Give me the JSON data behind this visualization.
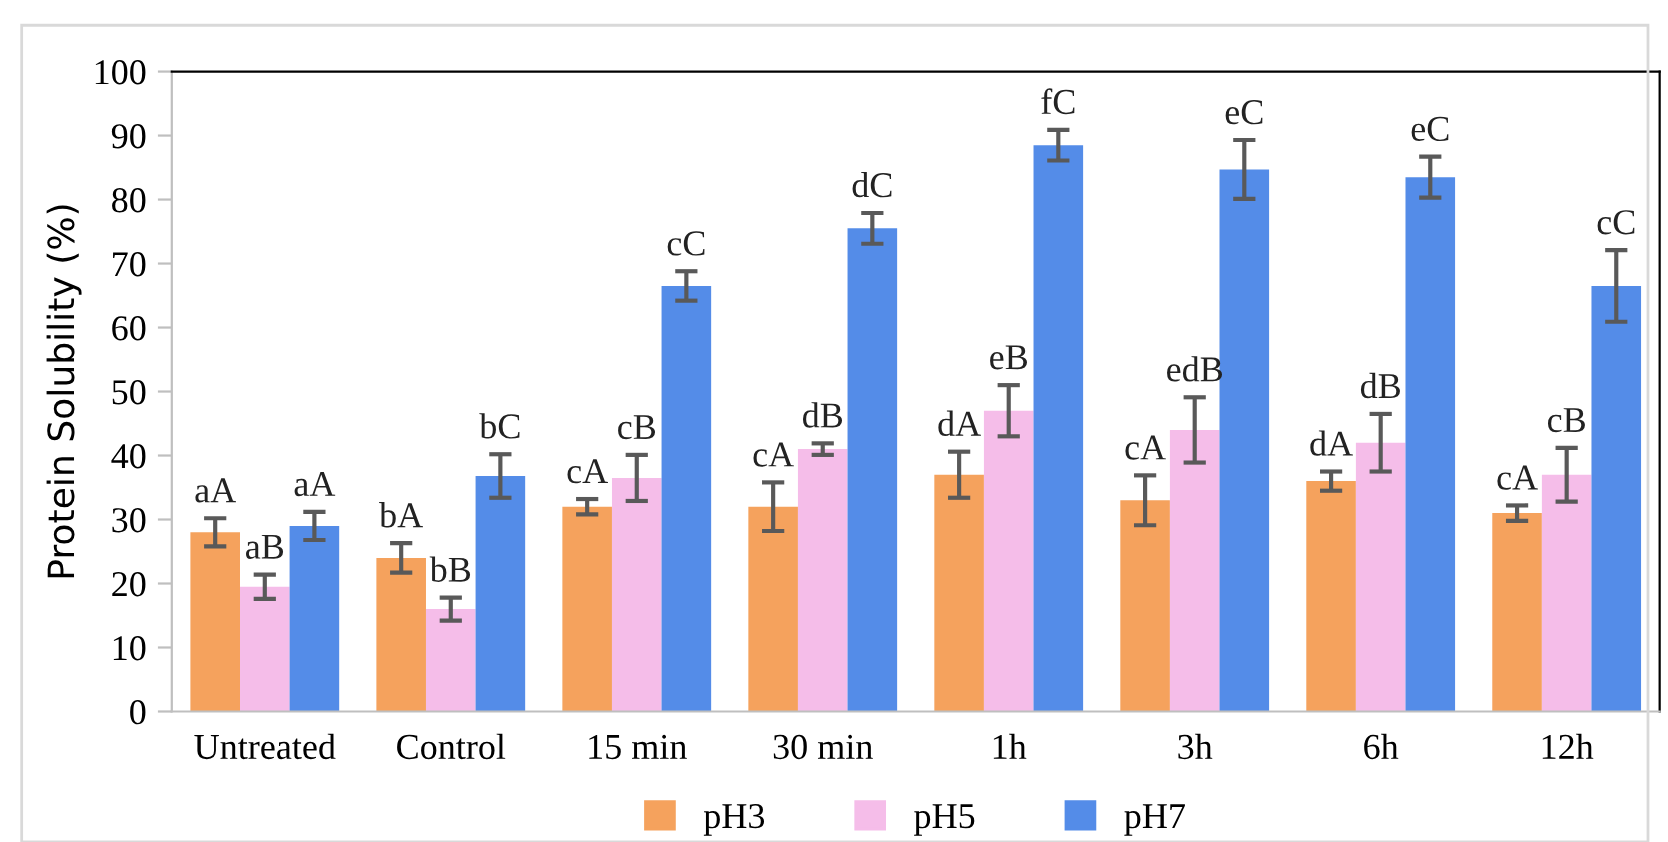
{
  "chart_data": {
    "type": "bar",
    "ylabel": "Protein Solubility (%)",
    "categories": [
      "Untreated",
      "Control",
      "15 min",
      "30 min",
      "1h",
      "3h",
      "6h",
      "12h"
    ],
    "series": [
      {
        "name": "pH3",
        "color": "#f5a25d",
        "values": [
          28,
          24,
          32,
          32,
          37,
          33,
          36,
          31
        ],
        "errors": [
          2.2,
          2.3,
          1.2,
          3.8,
          3.6,
          3.9,
          1.5,
          1.2
        ],
        "value_labels": [
          "aA",
          "bA",
          "cA",
          "cA",
          "dA",
          "cA",
          "dA",
          "cA"
        ]
      },
      {
        "name": "pH5",
        "color": "#f5bde9",
        "values": [
          19.5,
          16,
          36.5,
          41,
          47,
          44,
          42,
          37
        ],
        "errors": [
          1.9,
          1.8,
          3.6,
          0.9,
          4.0,
          5.1,
          4.5,
          4.2
        ],
        "value_labels": [
          "aB",
          "bB",
          "cB",
          "dB",
          "eB",
          "edB",
          "dB",
          "cB"
        ]
      },
      {
        "name": "pH7",
        "color": "#548ce8",
        "values": [
          29,
          36.8,
          66.5,
          75.5,
          88.5,
          84.7,
          83.5,
          66.5
        ],
        "errors": [
          2.2,
          3.4,
          2.3,
          2.4,
          2.4,
          4.6,
          3.2,
          5.6
        ],
        "value_labels": [
          "aA",
          "bC",
          "cC",
          "dC",
          "fC",
          "eC",
          "eC",
          "cC"
        ]
      }
    ],
    "ylim": [
      0,
      100
    ],
    "yticks": [
      0,
      10,
      20,
      30,
      40,
      50,
      60,
      70,
      80,
      90,
      100
    ],
    "grid": false,
    "legend": "bottom"
  }
}
